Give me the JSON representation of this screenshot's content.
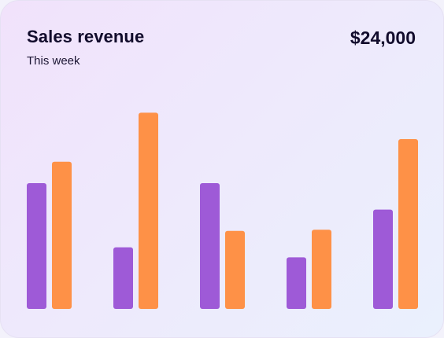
{
  "card": {
    "title": "Sales revenue",
    "subtitle": "This week",
    "total": "$24,000"
  },
  "chart_data": {
    "type": "bar",
    "categories": [
      "",
      "",
      "",
      "",
      ""
    ],
    "series": [
      {
        "values": [
          100,
          49,
          100,
          41,
          79
        ],
        "color": "#9e5ad7"
      },
      {
        "values": [
          117,
          156,
          62,
          63,
          135
        ],
        "color": "#fe9147"
      }
    ],
    "ylim": [
      0,
      160
    ],
    "grid": false,
    "legend": "none",
    "xlabel": "",
    "ylabel": ""
  }
}
